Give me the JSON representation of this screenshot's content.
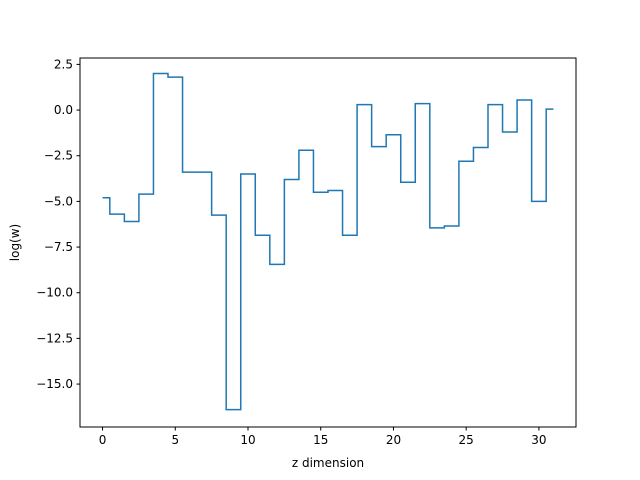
{
  "chart_data": {
    "type": "line",
    "drawstyle": "steps-mid",
    "xlabel": "z dimension",
    "ylabel": "log(w)",
    "xlim": [
      -1.55,
      32.55
    ],
    "ylim": [
      -17.35,
      2.85
    ],
    "xticks": [
      0,
      5,
      10,
      15,
      20,
      25,
      30
    ],
    "xtick_labels": [
      "0",
      "5",
      "10",
      "15",
      "20",
      "25",
      "30"
    ],
    "yticks": [
      2.5,
      0.0,
      -2.5,
      -5.0,
      -7.5,
      -10.0,
      -12.5,
      -15.0
    ],
    "ytick_labels": [
      "2.5",
      "0.0",
      "−2.5",
      "−5.0",
      "−7.5",
      "−10.0",
      "−12.5",
      "−15.0"
    ],
    "grid": false,
    "line_color": "#1f77b4",
    "series": [
      {
        "x": [
          0,
          1,
          2,
          3,
          4,
          5,
          6,
          7,
          8,
          9,
          10,
          11,
          12,
          13,
          14,
          15,
          16,
          17,
          18,
          19,
          20,
          21,
          22,
          23,
          24,
          25,
          26,
          27,
          28,
          29,
          30,
          31
        ],
        "values": [
          -4.8,
          -5.7,
          -6.1,
          -4.6,
          2.0,
          1.8,
          -3.4,
          -3.4,
          -5.75,
          -16.4,
          -3.5,
          -6.85,
          -8.45,
          -3.8,
          -2.2,
          -4.5,
          -4.4,
          -6.85,
          0.3,
          -2.0,
          -1.35,
          -3.95,
          0.35,
          -6.45,
          -6.35,
          -2.8,
          -2.05,
          0.3,
          -1.2,
          0.55,
          -5.0,
          0.05
        ]
      }
    ]
  }
}
